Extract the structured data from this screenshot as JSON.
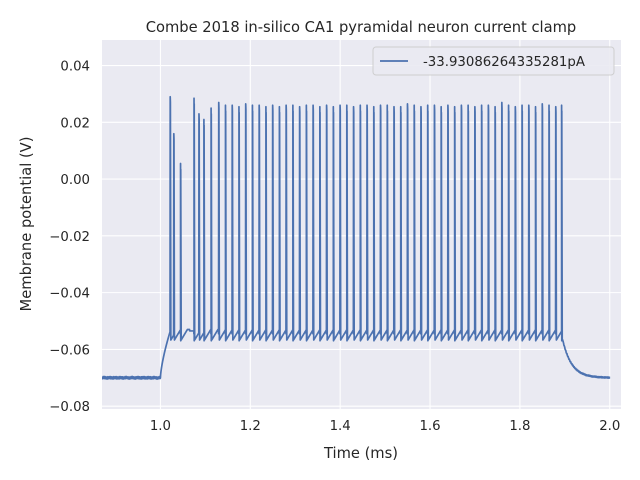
{
  "chart_data": {
    "type": "line",
    "title": "Combe 2018 in-silico CA1 pyramidal neuron current clamp",
    "xlabel": "Time (ms)",
    "ylabel": "Membrane potential (V)",
    "xlim": [
      0.87,
      2.025
    ],
    "ylim": [
      -0.081,
      0.049
    ],
    "x_ticks": [
      1.0,
      1.2,
      1.4,
      1.6,
      1.8,
      2.0
    ],
    "x_tick_labels": [
      "1.0",
      "1.2",
      "1.4",
      "1.6",
      "1.8",
      "2.0"
    ],
    "y_ticks": [
      -0.08,
      -0.06,
      -0.04,
      -0.02,
      0.0,
      0.02,
      0.04
    ],
    "y_tick_labels": [
      "−0.08",
      "−0.06",
      "−0.04",
      "−0.02",
      "0.00",
      "0.02",
      "0.04"
    ],
    "grid": true,
    "legend_position": "top-right",
    "colors": {
      "background": "#eaeaf2",
      "grid": "#ffffff",
      "series": "#4c72b0",
      "text": "#262626"
    },
    "series": [
      {
        "name": "-33.93086264335281pA",
        "x_start": 0.87,
        "x_end": 2.0,
        "rest_potential": -0.07,
        "stim_onset": 1.0,
        "stim_offset": 1.895,
        "trough_potential": -0.0555,
        "spike_times": [
          1.022,
          1.03,
          1.045,
          1.075,
          1.086,
          1.097,
          1.113,
          1.13,
          1.145,
          1.16,
          1.175,
          1.19,
          1.205,
          1.22,
          1.235,
          1.25,
          1.265,
          1.28,
          1.295,
          1.31,
          1.325,
          1.34,
          1.355,
          1.37,
          1.385,
          1.4,
          1.415,
          1.43,
          1.445,
          1.46,
          1.475,
          1.49,
          1.505,
          1.52,
          1.535,
          1.55,
          1.565,
          1.58,
          1.595,
          1.61,
          1.625,
          1.64,
          1.655,
          1.67,
          1.685,
          1.7,
          1.715,
          1.73,
          1.745,
          1.76,
          1.775,
          1.79,
          1.805,
          1.82,
          1.835,
          1.85,
          1.865,
          1.88,
          1.893
        ],
        "spike_peaks": [
          0.029,
          0.016,
          0.0055,
          0.0285,
          0.023,
          0.021,
          0.025,
          0.027,
          0.026,
          0.026,
          0.0255,
          0.0265,
          0.026,
          0.026,
          0.0255,
          0.026,
          0.0255,
          0.026,
          0.026,
          0.0255,
          0.026,
          0.026,
          0.0255,
          0.026,
          0.0255,
          0.026,
          0.026,
          0.0255,
          0.026,
          0.026,
          0.0255,
          0.026,
          0.026,
          0.0255,
          0.0255,
          0.0265,
          0.026,
          0.0255,
          0.026,
          0.026,
          0.0255,
          0.026,
          0.0255,
          0.026,
          0.026,
          0.0255,
          0.026,
          0.026,
          0.0255,
          0.027,
          0.026,
          0.0255,
          0.026,
          0.026,
          0.0255,
          0.0265,
          0.026,
          0.0255,
          0.026
        ]
      }
    ]
  }
}
